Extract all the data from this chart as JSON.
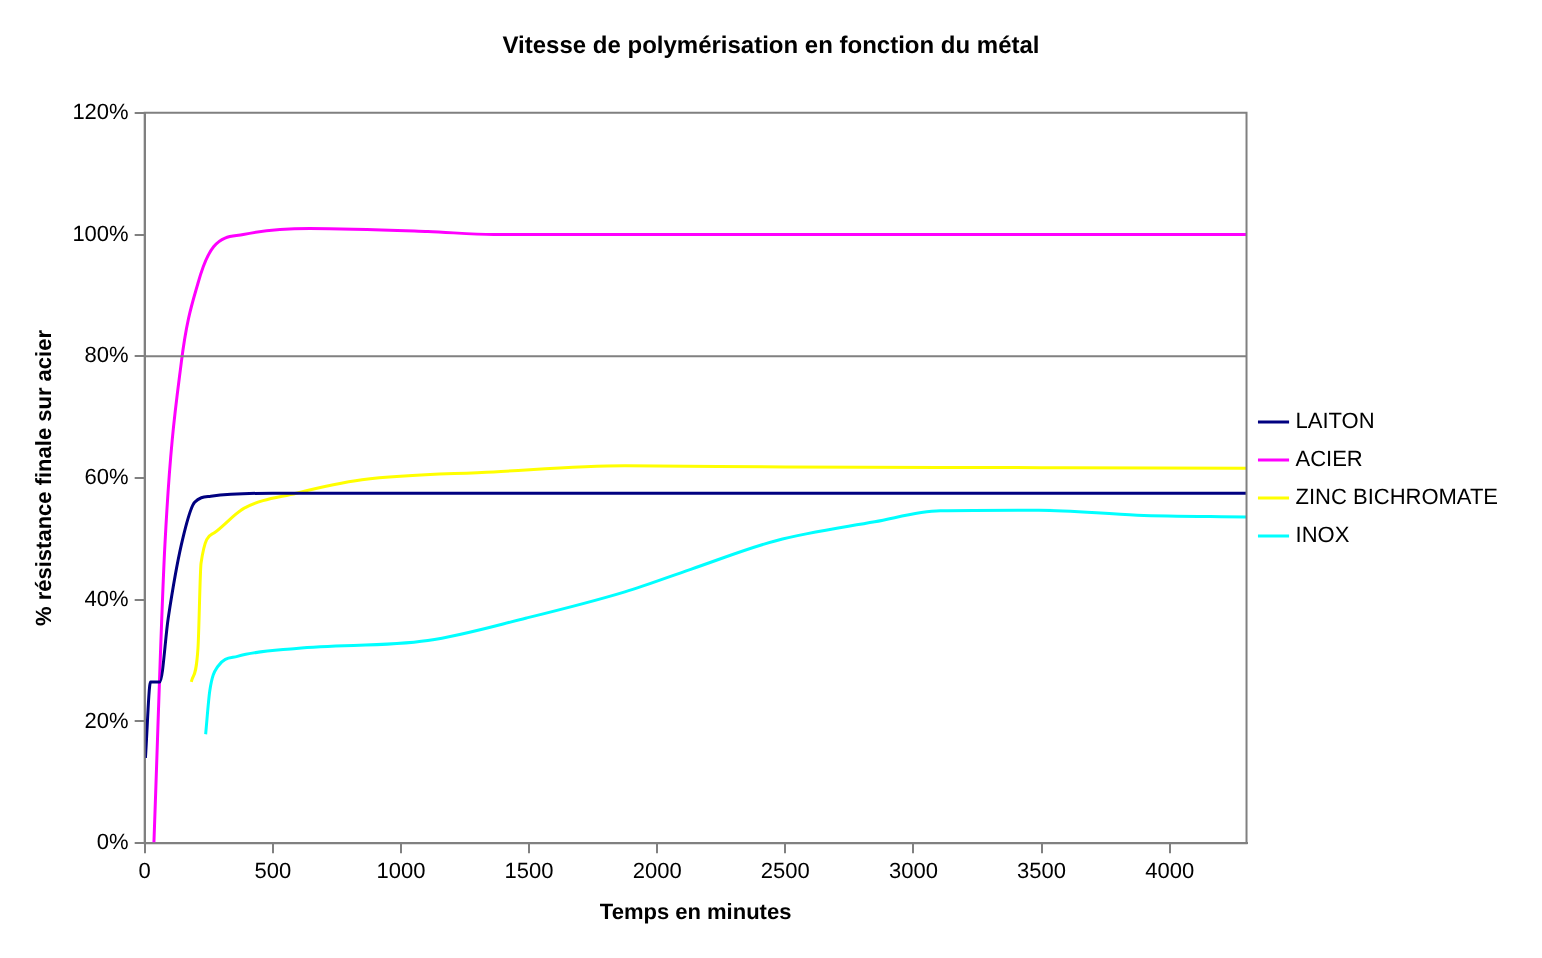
{
  "chart_data": {
    "type": "line",
    "title": "Vitesse de polymérisation en fonction du métal",
    "xlabel": "Temps en minutes",
    "ylabel": "% résistance finale sur acier",
    "xlim": [
      0,
      4300
    ],
    "xticks": [
      0,
      500,
      1000,
      1500,
      2000,
      2500,
      3000,
      3500,
      4000
    ],
    "ylim": [
      0,
      120
    ],
    "yticks": [
      {
        "value": 0,
        "label": "0%"
      },
      {
        "value": 20,
        "label": "20%"
      },
      {
        "value": 40,
        "label": "40%"
      },
      {
        "value": 60,
        "label": "60%"
      },
      {
        "value": 80,
        "label": "80%"
      },
      {
        "value": 100,
        "label": "100%"
      },
      {
        "value": 120,
        "label": "120%"
      }
    ],
    "grid": false,
    "legend": "right",
    "marker": "none",
    "line_style": "solid",
    "ref_lines": [
      {
        "axis": "y",
        "value": 80,
        "color": "#808080"
      }
    ],
    "series": [
      {
        "name": "LAITON",
        "color": "#000080",
        "x": [
          3,
          23,
          59,
          92,
          143,
          195,
          258,
          500,
          1000,
          2000,
          3000,
          4300
        ],
        "values": [
          14,
          26.5,
          26.5,
          37,
          49,
          56,
          57,
          57.5,
          57.5,
          57.5,
          57.5,
          57.5
        ]
      },
      {
        "name": "ACIER",
        "color": "#ff00ff",
        "x": [
          36,
          79,
          143,
          208,
          269,
          385,
          644,
          1105,
          1362,
          2000,
          3000,
          4300
        ],
        "values": [
          0,
          49,
          79,
          92,
          98,
          100,
          101,
          100.5,
          100,
          100,
          100,
          100
        ]
      },
      {
        "name": "ZINC BICHROMATE",
        "color": "#ffff00",
        "x": [
          182,
          208,
          220,
          272,
          387,
          592,
          848,
          1362,
          1874,
          2500,
          3500,
          4300
        ],
        "values": [
          26.5,
          32,
          46,
          51,
          55,
          57.5,
          59.7,
          61,
          62,
          61.8,
          61.7,
          61.6
        ]
      },
      {
        "name": "INOX",
        "color": "#00ffff",
        "x": [
          238,
          254,
          285,
          362,
          592,
          1105,
          1490,
          1874,
          2131,
          2464,
          2849,
          3105,
          3490,
          3874,
          4300
        ],
        "values": [
          17.9,
          25,
          29,
          30.7,
          32,
          33.3,
          37,
          41.3,
          45,
          49.7,
          52.8,
          54.6,
          54.7,
          53.9,
          53.6
        ]
      }
    ]
  }
}
